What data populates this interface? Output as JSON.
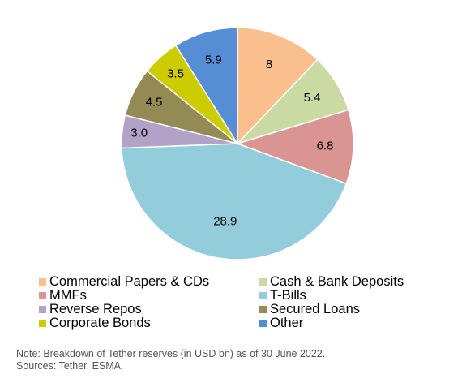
{
  "chart_data": {
    "type": "pie",
    "title": "",
    "start": "12 o'clock",
    "direction": "clockwise",
    "legend_position": "bottom",
    "slices": [
      {
        "name": "Commercial Papers & CDs",
        "value": 8,
        "label": "8",
        "color": "#F9C08E"
      },
      {
        "name": "Cash & Bank Deposits",
        "value": 5.4,
        "label": "5.4",
        "color": "#C9DBA3"
      },
      {
        "name": "MMFs",
        "value": 6.8,
        "label": "6.8",
        "color": "#DA9592"
      },
      {
        "name": "T-Bills",
        "value": 28.9,
        "label": "28.9",
        "color": "#93CDDC"
      },
      {
        "name": "Reverse Repos",
        "value": 3.0,
        "label": "3.0",
        "color": "#B2A2C7"
      },
      {
        "name": "Secured Loans",
        "value": 4.5,
        "label": "4.5",
        "color": "#948A54"
      },
      {
        "name": "Corporate Bonds",
        "value": 3.5,
        "label": "3.5",
        "color": "#CCCC00"
      },
      {
        "name": "Other",
        "value": 5.9,
        "label": "5.9",
        "color": "#558ED5"
      }
    ]
  },
  "legend": {
    "items": [
      {
        "label": "Commercial Papers & CDs",
        "color": "#F9C08E"
      },
      {
        "label": "Cash & Bank Deposits",
        "color": "#C9DBA3"
      },
      {
        "label": "MMFs",
        "color": "#DA9592"
      },
      {
        "label": "T-Bills",
        "color": "#93CDDC"
      },
      {
        "label": "Reverse Repos",
        "color": "#B2A2C7"
      },
      {
        "label": "Secured Loans",
        "color": "#948A54"
      },
      {
        "label": "Corporate Bonds",
        "color": "#CCCC00"
      },
      {
        "label": "Other",
        "color": "#558ED5"
      }
    ]
  },
  "note": {
    "line1": "Note: Breakdown of Tether reserves (in USD bn) as of 30 June 2022.",
    "line2": "Sources: Tether, ESMA."
  }
}
